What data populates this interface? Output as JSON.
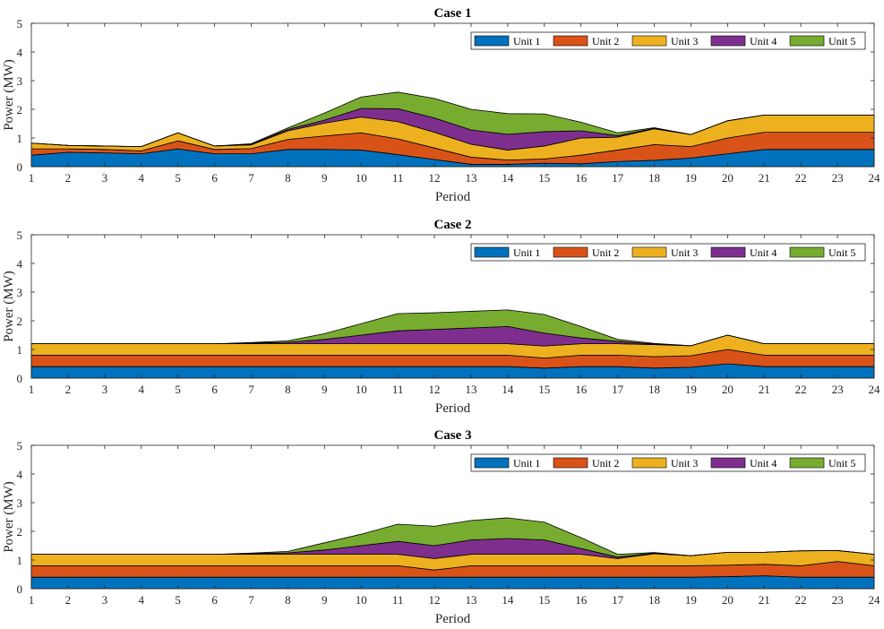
{
  "chart_data": [
    {
      "type": "area",
      "stacked": true,
      "title": "Case 1",
      "xlabel": "Period",
      "ylabel": "Power (MW)",
      "xlim": [
        1,
        24
      ],
      "ylim": [
        0,
        5
      ],
      "x": [
        1,
        2,
        3,
        4,
        5,
        6,
        7,
        8,
        9,
        10,
        11,
        12,
        13,
        14,
        15,
        16,
        17,
        18,
        19,
        20,
        21,
        22,
        23,
        24
      ],
      "legend_position": "top-right",
      "series": [
        {
          "name": "Unit 1",
          "values": [
            0.4,
            0.5,
            0.48,
            0.45,
            0.62,
            0.45,
            0.45,
            0.6,
            0.6,
            0.58,
            0.42,
            0.25,
            0.08,
            0.08,
            0.12,
            0.1,
            0.18,
            0.22,
            0.3,
            0.45,
            0.6,
            0.6,
            0.6,
            0.6
          ]
        },
        {
          "name": "Unit 2",
          "values": [
            0.22,
            0.12,
            0.12,
            0.1,
            0.28,
            0.15,
            0.18,
            0.35,
            0.47,
            0.6,
            0.55,
            0.4,
            0.25,
            0.15,
            0.15,
            0.3,
            0.4,
            0.55,
            0.4,
            0.55,
            0.6,
            0.6,
            0.6,
            0.6
          ]
        },
        {
          "name": "Unit 3",
          "values": [
            0.2,
            0.12,
            0.12,
            0.15,
            0.28,
            0.12,
            0.13,
            0.3,
            0.45,
            0.55,
            0.6,
            0.55,
            0.45,
            0.35,
            0.45,
            0.6,
            0.45,
            0.55,
            0.42,
            0.6,
            0.6,
            0.6,
            0.6,
            0.6
          ]
        },
        {
          "name": "Unit 4",
          "values": [
            0,
            0,
            0,
            0,
            0,
            0,
            0.02,
            0.05,
            0.1,
            0.3,
            0.45,
            0.5,
            0.5,
            0.55,
            0.5,
            0.25,
            0.05,
            0.02,
            0,
            0,
            0,
            0,
            0,
            0
          ]
        },
        {
          "name": "Unit 5",
          "values": [
            0,
            0,
            0,
            0,
            0,
            0,
            0.02,
            0.05,
            0.25,
            0.4,
            0.58,
            0.68,
            0.72,
            0.72,
            0.62,
            0.3,
            0.1,
            0.02,
            0,
            0,
            0,
            0,
            0,
            0
          ]
        }
      ]
    },
    {
      "type": "area",
      "stacked": true,
      "title": "Case 2",
      "xlabel": "Period",
      "ylabel": "Power (MW)",
      "xlim": [
        1,
        24
      ],
      "ylim": [
        0,
        5
      ],
      "x": [
        1,
        2,
        3,
        4,
        5,
        6,
        7,
        8,
        9,
        10,
        11,
        12,
        13,
        14,
        15,
        16,
        17,
        18,
        19,
        20,
        21,
        22,
        23,
        24
      ],
      "legend_position": "top-right",
      "series": [
        {
          "name": "Unit 1",
          "values": [
            0.4,
            0.4,
            0.4,
            0.4,
            0.4,
            0.4,
            0.4,
            0.4,
            0.4,
            0.4,
            0.4,
            0.4,
            0.4,
            0.4,
            0.35,
            0.4,
            0.4,
            0.35,
            0.38,
            0.5,
            0.4,
            0.4,
            0.4,
            0.4
          ]
        },
        {
          "name": "Unit 2",
          "values": [
            0.4,
            0.4,
            0.4,
            0.4,
            0.4,
            0.4,
            0.4,
            0.4,
            0.4,
            0.4,
            0.4,
            0.4,
            0.4,
            0.4,
            0.35,
            0.4,
            0.4,
            0.4,
            0.4,
            0.5,
            0.4,
            0.4,
            0.4,
            0.4
          ]
        },
        {
          "name": "Unit 3",
          "values": [
            0.4,
            0.4,
            0.4,
            0.4,
            0.4,
            0.4,
            0.4,
            0.4,
            0.4,
            0.4,
            0.4,
            0.4,
            0.4,
            0.4,
            0.42,
            0.4,
            0.4,
            0.42,
            0.35,
            0.5,
            0.4,
            0.4,
            0.4,
            0.4
          ]
        },
        {
          "name": "Unit 4",
          "values": [
            0,
            0,
            0,
            0,
            0,
            0,
            0.02,
            0.05,
            0.15,
            0.3,
            0.45,
            0.5,
            0.55,
            0.6,
            0.45,
            0.2,
            0.08,
            0.02,
            0,
            0,
            0,
            0,
            0,
            0
          ]
        },
        {
          "name": "Unit 5",
          "values": [
            0,
            0,
            0,
            0,
            0,
            0,
            0.02,
            0.05,
            0.2,
            0.4,
            0.6,
            0.58,
            0.58,
            0.58,
            0.65,
            0.4,
            0.07,
            0.02,
            0,
            0,
            0,
            0,
            0,
            0
          ]
        }
      ]
    },
    {
      "type": "area",
      "stacked": true,
      "title": "Case 3",
      "xlabel": "Period",
      "ylabel": "Power (MW)",
      "xlim": [
        1,
        24
      ],
      "ylim": [
        0,
        5
      ],
      "x": [
        1,
        2,
        3,
        4,
        5,
        6,
        7,
        8,
        9,
        10,
        11,
        12,
        13,
        14,
        15,
        16,
        17,
        18,
        19,
        20,
        21,
        22,
        23,
        24
      ],
      "legend_position": "top-right",
      "series": [
        {
          "name": "Unit 1",
          "values": [
            0.4,
            0.4,
            0.4,
            0.4,
            0.4,
            0.4,
            0.4,
            0.4,
            0.4,
            0.4,
            0.4,
            0.4,
            0.4,
            0.4,
            0.4,
            0.4,
            0.4,
            0.4,
            0.4,
            0.42,
            0.45,
            0.4,
            0.4,
            0.4
          ]
        },
        {
          "name": "Unit 2",
          "values": [
            0.4,
            0.4,
            0.4,
            0.4,
            0.4,
            0.4,
            0.4,
            0.4,
            0.4,
            0.4,
            0.4,
            0.25,
            0.4,
            0.4,
            0.4,
            0.4,
            0.4,
            0.4,
            0.4,
            0.4,
            0.4,
            0.4,
            0.55,
            0.4
          ]
        },
        {
          "name": "Unit 3",
          "values": [
            0.4,
            0.4,
            0.4,
            0.4,
            0.4,
            0.4,
            0.4,
            0.4,
            0.4,
            0.4,
            0.4,
            0.4,
            0.4,
            0.4,
            0.4,
            0.4,
            0.25,
            0.42,
            0.35,
            0.45,
            0.42,
            0.52,
            0.38,
            0.4
          ]
        },
        {
          "name": "Unit 4",
          "values": [
            0,
            0,
            0,
            0,
            0,
            0,
            0.02,
            0.05,
            0.15,
            0.3,
            0.45,
            0.45,
            0.5,
            0.55,
            0.5,
            0.2,
            0.05,
            0.02,
            0,
            0,
            0,
            0,
            0,
            0
          ]
        },
        {
          "name": "Unit 5",
          "values": [
            0,
            0,
            0,
            0,
            0,
            0,
            0.02,
            0.05,
            0.25,
            0.4,
            0.6,
            0.68,
            0.68,
            0.72,
            0.62,
            0.38,
            0.1,
            0.02,
            0,
            0,
            0,
            0,
            0,
            0
          ]
        }
      ]
    }
  ],
  "colors": [
    "#0072BD",
    "#D95319",
    "#EDB120",
    "#7E2F8E",
    "#77AC30"
  ]
}
